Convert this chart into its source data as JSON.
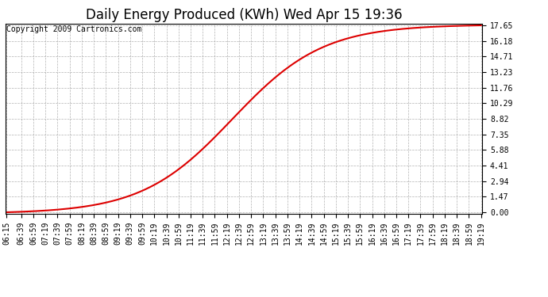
{
  "title": "Daily Energy Produced (KWh) Wed Apr 15 19:36",
  "copyright_text": "Copyright 2009 Cartronics.com",
  "line_color": "#dd0000",
  "background_color": "#ffffff",
  "plot_bg_color": "#ffffff",
  "grid_color": "#aaaaaa",
  "grid_style": "--",
  "yticks": [
    0.0,
    1.47,
    2.94,
    4.41,
    5.88,
    7.35,
    8.82,
    10.29,
    11.76,
    13.23,
    14.71,
    16.18,
    17.65
  ],
  "ymax": 17.65,
  "ymin": 0.0,
  "inflection_minutes": 748,
  "sigmoid_scale": 75,
  "max_value": 17.65,
  "min_value": 0.0,
  "xtick_labels": [
    "06:15",
    "06:39",
    "06:59",
    "07:19",
    "07:39",
    "07:59",
    "08:19",
    "08:39",
    "08:59",
    "09:19",
    "09:39",
    "09:59",
    "10:19",
    "10:39",
    "10:59",
    "11:19",
    "11:39",
    "11:59",
    "12:19",
    "12:39",
    "12:59",
    "13:19",
    "13:39",
    "13:59",
    "14:19",
    "14:39",
    "14:59",
    "15:19",
    "15:39",
    "15:59",
    "16:19",
    "16:39",
    "16:59",
    "17:19",
    "17:39",
    "17:59",
    "18:19",
    "18:39",
    "18:59",
    "19:19"
  ],
  "title_fontsize": 12,
  "copyright_fontsize": 7,
  "tick_fontsize": 7,
  "line_width": 1.5
}
